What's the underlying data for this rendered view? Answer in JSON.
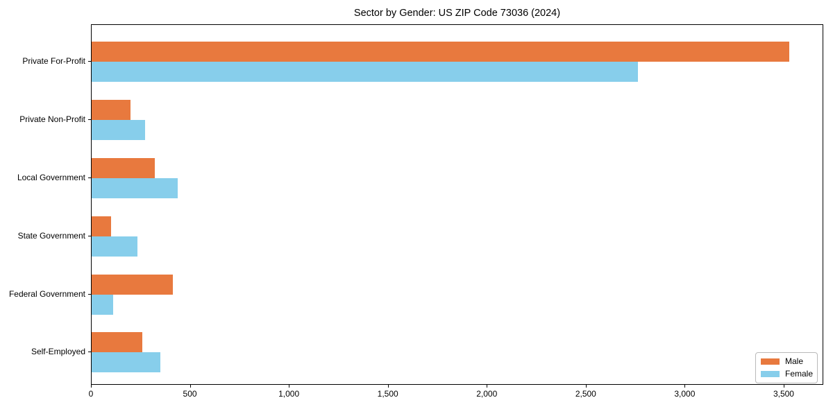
{
  "chart_data": {
    "type": "bar",
    "orientation": "horizontal",
    "title": "Sector by Gender: US ZIP Code 73036 (2024)",
    "categories": [
      "Private For-Profit",
      "Private Non-Profit",
      "Local Government",
      "State Government",
      "Federal Government",
      "Self-Employed"
    ],
    "series": [
      {
        "name": "Male",
        "color": "#e8793e",
        "values": [
          3525,
          195,
          318,
          98,
          411,
          257
        ]
      },
      {
        "name": "Female",
        "color": "#87ceeb",
        "values": [
          2761,
          269,
          434,
          230,
          109,
          347
        ]
      }
    ],
    "xlabel": "",
    "ylabel": "",
    "xlim": [
      0,
      3700
    ],
    "xticks": [
      0,
      500,
      1000,
      1500,
      2000,
      2500,
      3000,
      3500
    ],
    "xtick_labels": [
      "0",
      "500",
      "1,000",
      "1,500",
      "2,000",
      "2,500",
      "3,000",
      "3,500"
    ],
    "grid": false,
    "legend": {
      "position": "lower right",
      "labels": [
        "Male",
        "Female"
      ]
    }
  },
  "colors": {
    "male": "#e8793e",
    "female": "#87ceeb",
    "axis": "#000000",
    "legend_border": "#b9b9b9",
    "background": "#ffffff"
  }
}
